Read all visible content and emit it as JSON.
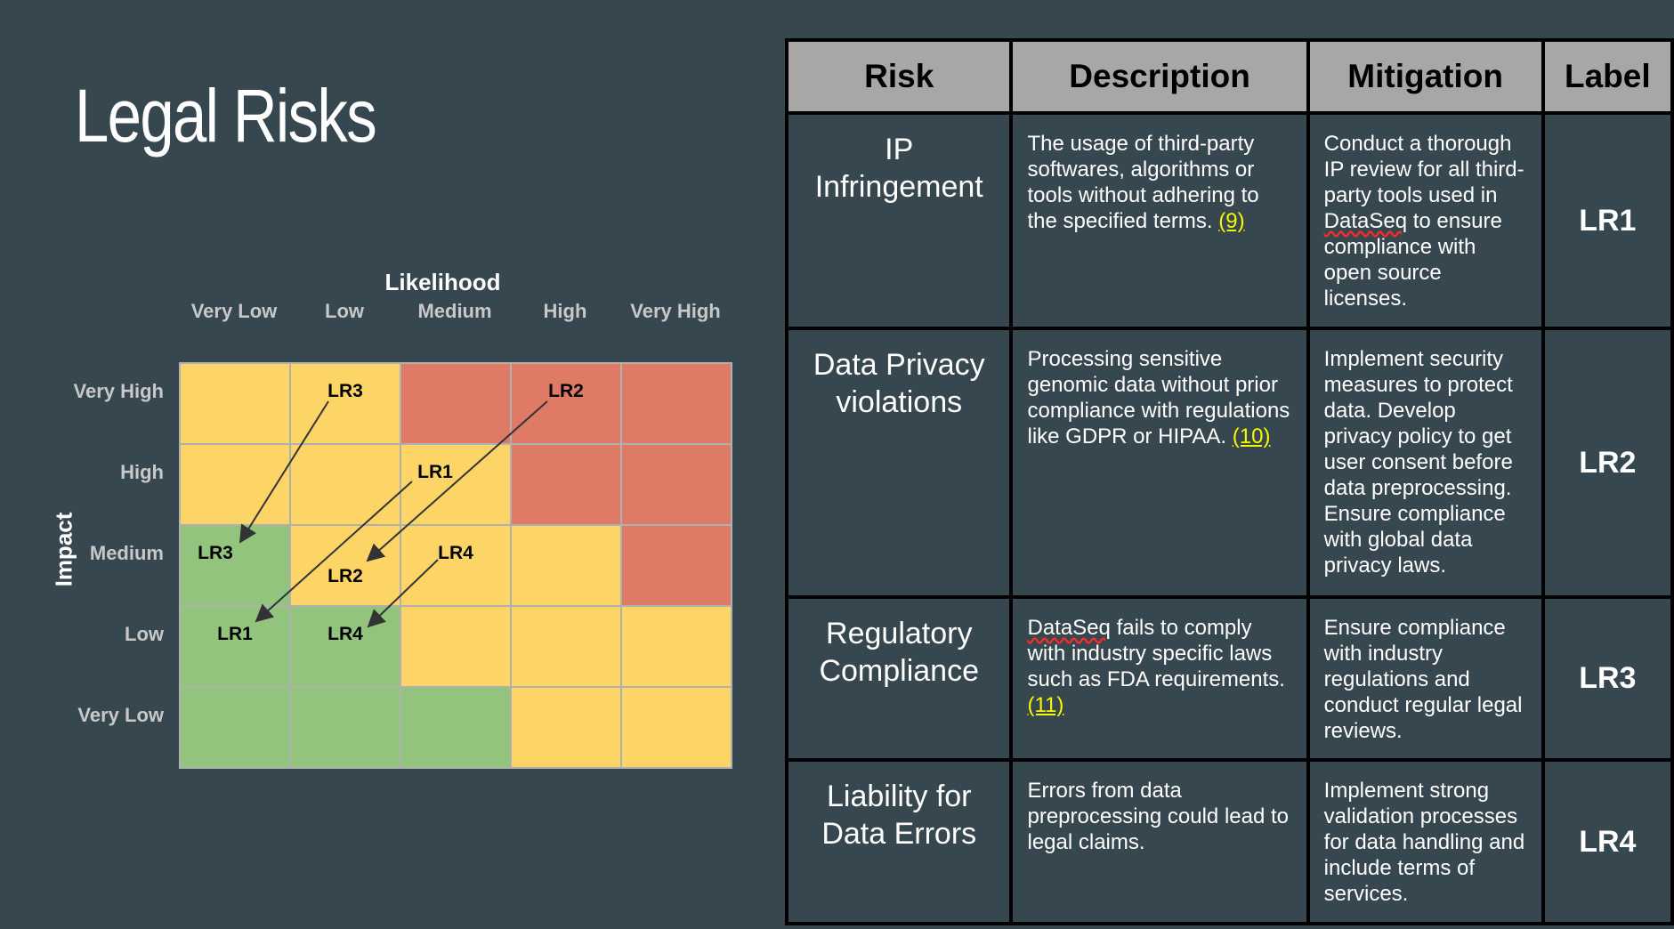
{
  "slide": {
    "title": "Legal Risks"
  },
  "matrix": {
    "x_axis_title": "Likelihood",
    "y_axis_title": "Impact",
    "columns": [
      "Very Low",
      "Low",
      "Medium",
      "High",
      "Very High"
    ],
    "rows": [
      "Very High",
      "High",
      "Medium",
      "Low",
      "Very Low"
    ],
    "cell_colors": [
      [
        "yellow",
        "yellow",
        "red",
        "red",
        "red"
      ],
      [
        "yellow",
        "yellow",
        "yellow",
        "red",
        "red"
      ],
      [
        "green",
        "yellow",
        "yellow",
        "yellow",
        "red"
      ],
      [
        "green",
        "green",
        "yellow",
        "yellow",
        "yellow"
      ],
      [
        "green",
        "green",
        "green",
        "yellow",
        "yellow"
      ]
    ],
    "colors": {
      "yellow": "#fdd567",
      "red": "#df7a67",
      "green": "#93c47d"
    },
    "markers": {
      "lr3_before": "LR3",
      "lr2_before": "LR2",
      "lr1_before": "LR1",
      "lr3_after": "LR3",
      "lr2_after": "LR2",
      "lr4_before": "LR4",
      "lr1_after": "LR1",
      "lr4_after": "LR4"
    },
    "movements": [
      {
        "risk": "LR1",
        "from": {
          "likelihood": "Medium",
          "impact": "High"
        },
        "to": {
          "likelihood": "Very Low",
          "impact": "Low"
        }
      },
      {
        "risk": "LR2",
        "from": {
          "likelihood": "High",
          "impact": "Very High"
        },
        "to": {
          "likelihood": "Low",
          "impact": "Medium"
        }
      },
      {
        "risk": "LR3",
        "from": {
          "likelihood": "Low",
          "impact": "Very High"
        },
        "to": {
          "likelihood": "Very Low",
          "impact": "Medium"
        }
      },
      {
        "risk": "LR4",
        "from": {
          "likelihood": "Medium",
          "impact": "Medium"
        },
        "to": {
          "likelihood": "Low",
          "impact": "Low"
        }
      }
    ]
  },
  "table": {
    "headers": {
      "risk": "Risk",
      "description": "Description",
      "mitigation": "Mitigation",
      "label": "Label"
    },
    "rows": [
      {
        "risk": "IP Infringement",
        "description": "The usage of third-party softwares, algorithms or tools without adhering to the specified terms.",
        "description_cite": "(9)",
        "mitigation_pre": "Conduct a thorough IP review for all third-party tools used in",
        "mitigation_flagged": "DataSeq",
        "mitigation_post": "to ensure compliance with open source licenses.",
        "label": "LR1"
      },
      {
        "risk": "Data Privacy violations",
        "description": "Processing sensitive genomic data without prior compliance with regulations like GDPR or HIPAA.",
        "description_cite": "(10)",
        "mitigation": "Implement security measures to protect data. Develop privacy policy to get user consent before data preprocessing. Ensure compliance with global data privacy laws.",
        "label": "LR2"
      },
      {
        "risk": "Regulatory Compliance",
        "description_flagged": "DataSeq",
        "description_post": "fails to comply with industry specific laws such as FDA requirements.",
        "description_cite": "(11)",
        "mitigation": "Ensure compliance with industry regulations and conduct regular legal reviews.",
        "label": "LR3"
      },
      {
        "risk": "Liability for Data Errors",
        "description": "Errors from data preprocessing could lead to legal claims.",
        "mitigation": "Implement strong validation processes for data handling and include terms of services.",
        "label": "LR4"
      }
    ]
  }
}
